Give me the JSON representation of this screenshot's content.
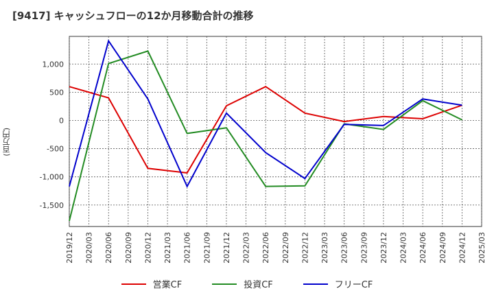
{
  "chart_data": {
    "type": "line",
    "title": "[9417]  キャッシュフローの12か月移動合計の推移",
    "ylabel": "(百万円)",
    "xlabel": "",
    "x": [
      "2019/12",
      "2020/03",
      "2020/06",
      "2020/09",
      "2020/12",
      "2021/03",
      "2021/06",
      "2021/09",
      "2021/12",
      "2022/03",
      "2022/06",
      "2022/09",
      "2022/12",
      "2023/03",
      "2023/06",
      "2023/09",
      "2023/12",
      "2024/03",
      "2024/06",
      "2024/09",
      "2024/12",
      "2025/03"
    ],
    "y_ticks": [
      1000,
      500,
      0,
      -500,
      -1000,
      -1500
    ],
    "y_tick_labels": [
      "1,000",
      "500",
      "0",
      "-500",
      "-1,000",
      "-1,500"
    ],
    "ylim": [
      -1880,
      1490
    ],
    "grid": true,
    "legend_position": "bottom",
    "series": [
      {
        "name": "営業CF",
        "color": "#dd0000",
        "points": [
          [
            "2019/12",
            600
          ],
          [
            "2020/06",
            400
          ],
          [
            "2020/12",
            -850
          ],
          [
            "2021/06",
            -930
          ],
          [
            "2021/12",
            260
          ],
          [
            "2022/06",
            600
          ],
          [
            "2022/12",
            130
          ],
          [
            "2023/06",
            -20
          ],
          [
            "2023/12",
            70
          ],
          [
            "2024/06",
            30
          ],
          [
            "2024/12",
            270
          ]
        ]
      },
      {
        "name": "投資CF",
        "color": "#228B22",
        "points": [
          [
            "2019/12",
            -1780
          ],
          [
            "2020/06",
            1010
          ],
          [
            "2020/12",
            1230
          ],
          [
            "2021/06",
            -230
          ],
          [
            "2021/12",
            -130
          ],
          [
            "2022/06",
            -1170
          ],
          [
            "2022/12",
            -1160
          ],
          [
            "2023/06",
            -60
          ],
          [
            "2023/12",
            -160
          ],
          [
            "2024/06",
            350
          ],
          [
            "2024/12",
            10
          ]
        ]
      },
      {
        "name": "フリーCF",
        "color": "#0000cc",
        "points": [
          [
            "2019/12",
            -1170
          ],
          [
            "2020/06",
            1410
          ],
          [
            "2020/12",
            380
          ],
          [
            "2021/06",
            -1170
          ],
          [
            "2021/12",
            130
          ],
          [
            "2022/06",
            -570
          ],
          [
            "2022/12",
            -1030
          ],
          [
            "2023/06",
            -70
          ],
          [
            "2023/12",
            -90
          ],
          [
            "2024/06",
            380
          ],
          [
            "2024/12",
            270
          ]
        ]
      }
    ]
  }
}
